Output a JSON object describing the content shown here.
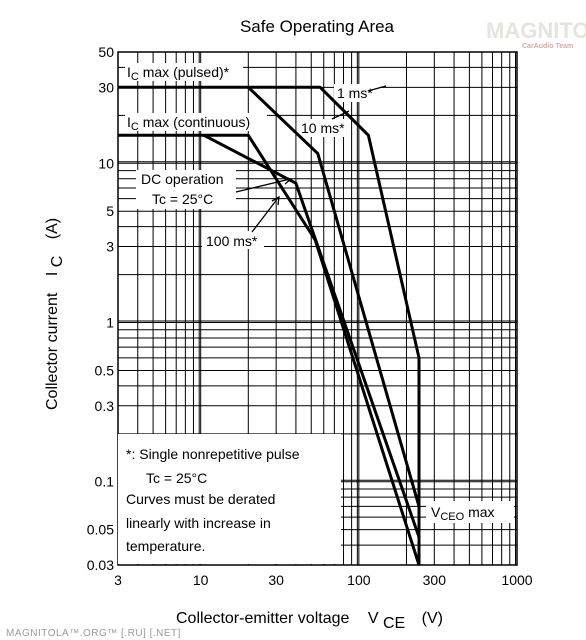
{
  "watermark": {
    "logo": "MAGNITOLA",
    "sub": "CarAudio Team"
  },
  "footer": "MAGNITOLA™.ORG™ [.RU] [.NET]",
  "chart_data": {
    "type": "line",
    "title": "Safe Operating Area",
    "xlabel_main": "Collector-emitter voltage",
    "xlabel_symbol": "V",
    "xlabel_sub": "CE",
    "xlabel_unit": "(V)",
    "ylabel_main": "Collector current",
    "ylabel_symbol": "I",
    "ylabel_sub": "C",
    "ylabel_unit": "(A)",
    "x_scale": "log",
    "y_scale": "log",
    "xlim": [
      3,
      1000
    ],
    "ylim": [
      0.03,
      50
    ],
    "grid": true,
    "x_ticks": [
      3,
      10,
      30,
      100,
      300,
      1000
    ],
    "x_tick_labels": [
      "3",
      "10",
      "30",
      "100",
      "300",
      "1000"
    ],
    "y_ticks": [
      0.03,
      0.05,
      0.1,
      0.3,
      0.5,
      1,
      3,
      5,
      10,
      30,
      50
    ],
    "y_tick_labels": [
      "0.03",
      "0.05",
      "0.1",
      "0.3",
      "0.5",
      "1",
      "3",
      "5",
      "10",
      "30",
      "50"
    ],
    "series": [
      {
        "id": "1ms",
        "x": [
          3,
          57,
          115,
          240,
          240
        ],
        "y": [
          30,
          30,
          15,
          0.6,
          0.03
        ]
      },
      {
        "id": "10ms",
        "x": [
          20,
          55,
          240,
          240
        ],
        "y": [
          30,
          11.5,
          0.07,
          0.03
        ]
      },
      {
        "id": "100ms",
        "x": [
          10.5,
          40,
          240
        ],
        "y": [
          15,
          7.5,
          0.045
        ]
      },
      {
        "id": "dc",
        "x": [
          3,
          20,
          53,
          240
        ],
        "y": [
          15,
          15,
          3.3,
          0.03
        ]
      }
    ],
    "annotations": {
      "ic_pulsed": {
        "sym": "I",
        "sub": "C",
        "text": " max (pulsed)*"
      },
      "ic_cont": {
        "sym": "I",
        "sub": "C",
        "text": " max (continuous)"
      },
      "one_ms": "1 ms*",
      "ten_ms": "10 ms*",
      "dc_line1": "DC operation",
      "dc_line2": "Tc = 25°C",
      "hundred_ms": "100 ms*",
      "vceo_sym": "V",
      "vceo_sub": "CEO",
      "vceo_text": " max"
    },
    "note": {
      "line1": "*:  Single nonrepetitive pulse",
      "line2": "Tc = 25°C",
      "line3": "Curves must be derated",
      "line4": "linearly with increase in",
      "line5": "temperature."
    }
  }
}
